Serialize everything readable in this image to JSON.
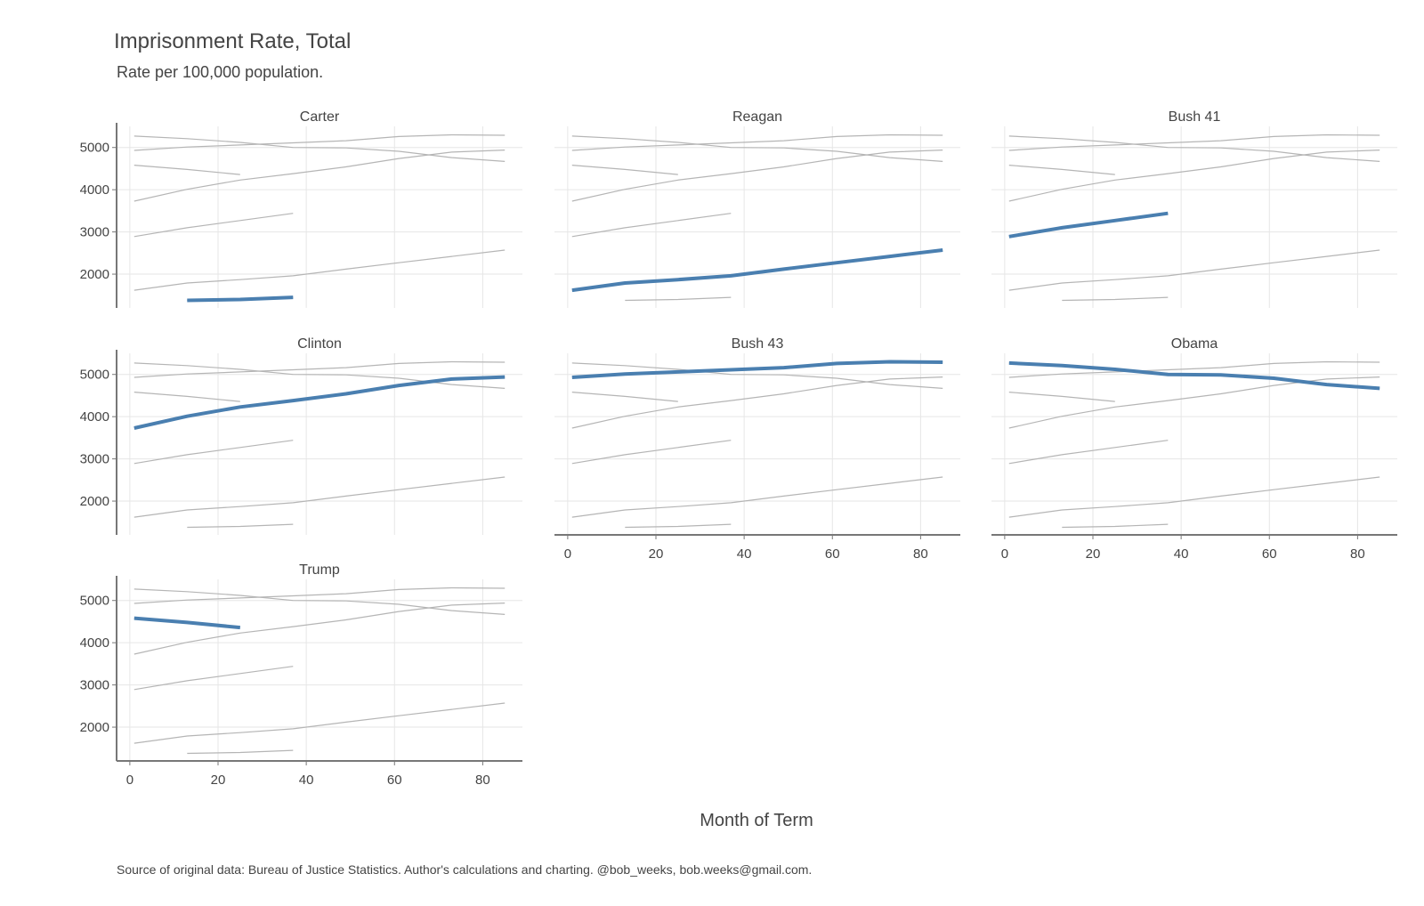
{
  "title": "Imprisonment Rate, Total",
  "subtitle": "Rate per 100,000 population.",
  "xlabel": "Month of Term",
  "caption": "Source of original data: Bureau of Justice Statistics. Author's calculations and charting. @bob_weeks, bob.weeks@gmail.com.",
  "colors": {
    "highlight": "#4a7fb0",
    "ghost": "#b5b5b5",
    "grid": "#e6e6e6",
    "axis": "#777777",
    "text": "#444444"
  },
  "chart_data": {
    "type": "line",
    "facets": [
      "Carter",
      "Reagan",
      "Bush 41",
      "Clinton",
      "Bush 43",
      "Obama",
      "Trump"
    ],
    "x": [
      1,
      13,
      25,
      37,
      49,
      61,
      73,
      85
    ],
    "xlim": [
      -3,
      89
    ],
    "ylim": [
      1200,
      5500
    ],
    "xticks": [
      "0",
      "20",
      "40",
      "60",
      "80"
    ],
    "yticks": [
      "2000",
      "3000",
      "4000",
      "5000"
    ],
    "grid": true,
    "series": [
      {
        "name": "Carter",
        "values": [
          null,
          1380,
          1400,
          1450,
          null,
          null,
          null,
          null
        ]
      },
      {
        "name": "Reagan",
        "values": [
          1620,
          1790,
          1870,
          1960,
          2120,
          2270,
          2420,
          2570
        ]
      },
      {
        "name": "Bush 41",
        "values": [
          2890,
          3100,
          3270,
          3440,
          null,
          null,
          null,
          null
        ]
      },
      {
        "name": "Clinton",
        "values": [
          3730,
          4010,
          4230,
          4380,
          4540,
          4740,
          4890,
          4940
        ]
      },
      {
        "name": "Bush 43",
        "values": [
          4930,
          5010,
          5060,
          5110,
          5160,
          5260,
          5300,
          5290
        ]
      },
      {
        "name": "Obama",
        "values": [
          5270,
          5210,
          5120,
          5000,
          4990,
          4910,
          4760,
          4670
        ]
      },
      {
        "name": "Trump",
        "values": [
          4580,
          4480,
          4360,
          null,
          null,
          null,
          null,
          null
        ]
      }
    ]
  }
}
